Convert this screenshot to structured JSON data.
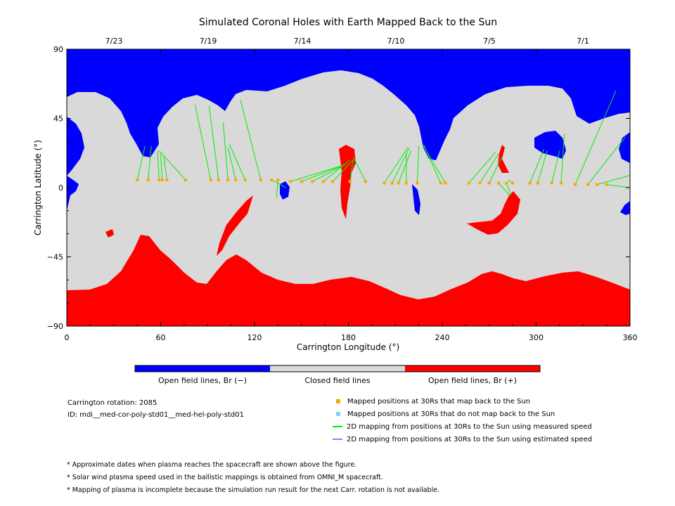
{
  "chart_data": {
    "type": "map",
    "title": "Simulated Coronal Holes with Earth Mapped Back to the Sun",
    "xlabel": "Carrington Longitude (°)",
    "ylabel": "Carrington Latitude (°)",
    "xlim": [
      0,
      360
    ],
    "ylim": [
      -90,
      90
    ],
    "xticks": [
      "0",
      "60",
      "120",
      "180",
      "240",
      "300",
      "360"
    ],
    "yticks": [
      "90",
      "45",
      "0",
      "−45",
      "−90"
    ],
    "top_date_ticks": [
      "7/23",
      "7/19",
      "7/14",
      "7/10",
      "7/5",
      "7/1"
    ],
    "colors": {
      "open_negative": "#0000ff",
      "closed": "#d9d9d9",
      "open_positive": "#ff0000",
      "mapped_point": "#ffa500",
      "unmapped_point": "#87cefa",
      "measured_line": "#00ee00",
      "estimated_line": "#b070f0"
    },
    "colorbar_labels": [
      "Open field lines, Br (−)",
      "Closed field lines",
      "Open field lines, Br (+)"
    ],
    "mapped_points": [
      {
        "lon": 45,
        "lat": 5
      },
      {
        "lon": 52,
        "lat": 5
      },
      {
        "lon": 59,
        "lat": 5
      },
      {
        "lon": 61,
        "lat": 5
      },
      {
        "lon": 64,
        "lat": 5
      },
      {
        "lon": 76,
        "lat": 5
      },
      {
        "lon": 92,
        "lat": 5
      },
      {
        "lon": 97,
        "lat": 5
      },
      {
        "lon": 103,
        "lat": 5
      },
      {
        "lon": 108,
        "lat": 5
      },
      {
        "lon": 114,
        "lat": 5
      },
      {
        "lon": 124,
        "lat": 5
      },
      {
        "lon": 131,
        "lat": 5
      },
      {
        "lon": 135,
        "lat": 5
      },
      {
        "lon": 143,
        "lat": 4
      },
      {
        "lon": 150,
        "lat": 4
      },
      {
        "lon": 157,
        "lat": 4
      },
      {
        "lon": 164,
        "lat": 4
      },
      {
        "lon": 170,
        "lat": 4
      },
      {
        "lon": 181,
        "lat": 4
      },
      {
        "lon": 191,
        "lat": 4
      },
      {
        "lon": 203,
        "lat": 3
      },
      {
        "lon": 208,
        "lat": 3
      },
      {
        "lon": 212,
        "lat": 3
      },
      {
        "lon": 217,
        "lat": 3
      },
      {
        "lon": 224,
        "lat": 3
      },
      {
        "lon": 239,
        "lat": 3
      },
      {
        "lon": 242,
        "lat": 3
      },
      {
        "lon": 257,
        "lat": 3
      },
      {
        "lon": 264,
        "lat": 3
      },
      {
        "lon": 270,
        "lat": 3
      },
      {
        "lon": 276,
        "lat": 3
      },
      {
        "lon": 281,
        "lat": 3
      },
      {
        "lon": 285,
        "lat": 3
      },
      {
        "lon": 296,
        "lat": 3
      },
      {
        "lon": 301,
        "lat": 3
      },
      {
        "lon": 310,
        "lat": 3
      },
      {
        "lon": 316,
        "lat": 3
      },
      {
        "lon": 325,
        "lat": 2
      },
      {
        "lon": 333,
        "lat": 2
      },
      {
        "lon": 339,
        "lat": 2
      },
      {
        "lon": 345,
        "lat": 2
      }
    ],
    "mapping_lines_measured": [
      {
        "from": [
          45,
          5
        ],
        "to": [
          50,
          27
        ]
      },
      {
        "from": [
          52,
          5
        ],
        "to": [
          54,
          27
        ]
      },
      {
        "from": [
          59,
          5
        ],
        "to": [
          58,
          24
        ]
      },
      {
        "from": [
          61,
          5
        ],
        "to": [
          60,
          22
        ]
      },
      {
        "from": [
          64,
          5
        ],
        "to": [
          62,
          20
        ]
      },
      {
        "from": [
          76,
          5
        ],
        "to": [
          59,
          24
        ]
      },
      {
        "from": [
          92,
          5
        ],
        "to": [
          82,
          54
        ]
      },
      {
        "from": [
          97,
          5
        ],
        "to": [
          91,
          53
        ]
      },
      {
        "from": [
          103,
          5
        ],
        "to": [
          100,
          42
        ]
      },
      {
        "from": [
          108,
          5
        ],
        "to": [
          103,
          26
        ]
      },
      {
        "from": [
          114,
          5
        ],
        "to": [
          104,
          28
        ]
      },
      {
        "from": [
          124,
          5
        ],
        "to": [
          111,
          57
        ]
      },
      {
        "from": [
          131,
          5
        ],
        "to": [
          140,
          0
        ]
      },
      {
        "from": [
          135,
          5
        ],
        "to": [
          134,
          -7
        ]
      },
      {
        "from": [
          143,
          4
        ],
        "to": [
          178,
          15
        ]
      },
      {
        "from": [
          150,
          4
        ],
        "to": [
          178,
          15
        ]
      },
      {
        "from": [
          157,
          4
        ],
        "to": [
          178,
          15
        ]
      },
      {
        "from": [
          164,
          4
        ],
        "to": [
          181,
          18
        ]
      },
      {
        "from": [
          170,
          4
        ],
        "to": [
          183,
          18
        ]
      },
      {
        "from": [
          181,
          4
        ],
        "to": [
          183,
          18
        ]
      },
      {
        "from": [
          191,
          4
        ],
        "to": [
          183,
          20
        ]
      },
      {
        "from": [
          203,
          3
        ],
        "to": [
          218,
          26
        ]
      },
      {
        "from": [
          208,
          3
        ],
        "to": [
          219,
          26
        ]
      },
      {
        "from": [
          212,
          3
        ],
        "to": [
          220,
          24
        ]
      },
      {
        "from": [
          217,
          3
        ],
        "to": [
          217,
          22
        ]
      },
      {
        "from": [
          224,
          3
        ],
        "to": [
          225,
          27
        ]
      },
      {
        "from": [
          239,
          3
        ],
        "to": [
          228,
          28
        ]
      },
      {
        "from": [
          242,
          3
        ],
        "to": [
          228,
          27
        ]
      },
      {
        "from": [
          257,
          3
        ],
        "to": [
          274,
          23
        ]
      },
      {
        "from": [
          264,
          3
        ],
        "to": [
          276,
          22
        ]
      },
      {
        "from": [
          270,
          3
        ],
        "to": [
          278,
          20
        ]
      },
      {
        "from": [
          276,
          3
        ],
        "to": [
          283,
          -5
        ]
      },
      {
        "from": [
          281,
          3
        ],
        "to": [
          284,
          -5
        ]
      },
      {
        "from": [
          285,
          3
        ],
        "to": [
          282,
          5
        ]
      },
      {
        "from": [
          296,
          3
        ],
        "to": [
          305,
          25
        ]
      },
      {
        "from": [
          301,
          3
        ],
        "to": [
          307,
          24
        ]
      },
      {
        "from": [
          310,
          3
        ],
        "to": [
          315,
          24
        ]
      },
      {
        "from": [
          316,
          3
        ],
        "to": [
          318,
          35
        ]
      },
      {
        "from": [
          325,
          2
        ],
        "to": [
          351,
          63
        ]
      },
      {
        "from": [
          333,
          2
        ],
        "to": [
          357,
          33
        ]
      },
      {
        "from": [
          339,
          2
        ],
        "to": [
          360,
          8
        ]
      },
      {
        "from": [
          345,
          2
        ],
        "to": [
          360,
          0
        ]
      }
    ]
  },
  "info": {
    "carrington_rotation": "Carrington rotation: 2085",
    "id": "ID: mdi__med-cor-poly-std01__med-hel-poly-std01"
  },
  "legend": [
    {
      "kind": "square",
      "color": "#ffa500",
      "label": "Mapped positions at 30Rs that map back to the Sun"
    },
    {
      "kind": "square",
      "color": "#87cefa",
      "label": "Mapped positions at 30Rs that do not map back to the Sun"
    },
    {
      "kind": "line",
      "color": "#00ee00",
      "label": "2D mapping from positions at 30Rs to the Sun using measured speed"
    },
    {
      "kind": "line",
      "color": "#b070f0",
      "label": "2D mapping from positions at 30Rs to the Sun using estimated speed"
    }
  ],
  "notes": [
    "* Approximate dates when plasma reaches the spacecraft are shown above the figure.",
    "* Solar wind plasma speed used in the ballistic mappings is obtained from OMNI_M spacecraft.",
    "* Mapping of plasma is incomplete because the simulation run result for the next Carr. rotation is not available."
  ]
}
